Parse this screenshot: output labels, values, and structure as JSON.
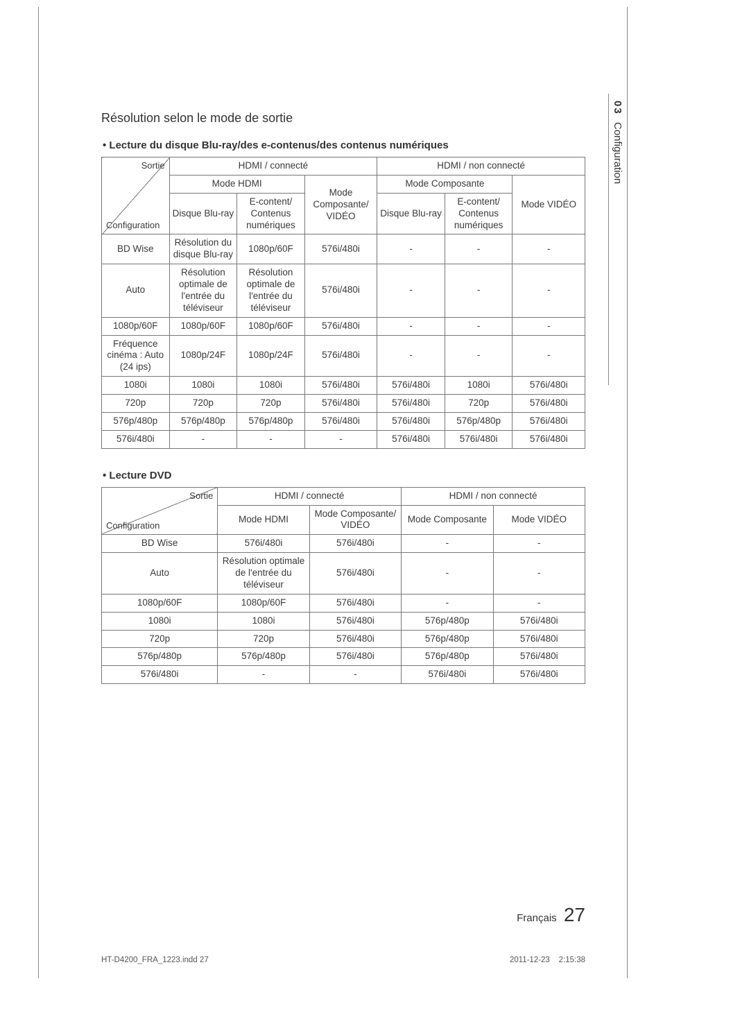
{
  "chapter_number": "03",
  "chapter_title": "Configuration",
  "heading": "Résolution selon le mode de sortie",
  "sub1": "Lecture du disque Blu-ray/des e-contenus/des contenus numériques",
  "sub2": "Lecture DVD",
  "diag_top": "Sortie",
  "diag_bottom": "Configuration",
  "t1": {
    "h_hdmi_c": "HDMI / connecté",
    "h_hdmi_nc": "HDMI / non connecté",
    "h_mode_hdmi": "Mode HDMI",
    "h_mode_comp_video": "Mode Composante/ VIDÉO",
    "h_mode_comp": "Mode Composante",
    "h_mode_video": "Mode VIDÉO",
    "h_br": "Disque Blu-ray",
    "h_ec": "E-content/ Contenus numériques",
    "rows": [
      {
        "c0": "BD Wise",
        "c1": "Résolution du disque Blu-ray",
        "c2": "1080p/60F",
        "c3": "576i/480i",
        "c4": "-",
        "c5": "-",
        "c6": "-"
      },
      {
        "c0": "Auto",
        "c1": "Résolution optimale de l'entrée du téléviseur",
        "c2": "Résolution optimale de l'entrée du téléviseur",
        "c3": "576i/480i",
        "c4": "-",
        "c5": "-",
        "c6": "-"
      },
      {
        "c0": "1080p/60F",
        "c1": "1080p/60F",
        "c2": "1080p/60F",
        "c3": "576i/480i",
        "c4": "-",
        "c5": "-",
        "c6": "-"
      },
      {
        "c0": "Fréquence cinéma : Auto (24 ips)",
        "c1": "1080p/24F",
        "c2": "1080p/24F",
        "c3": "576i/480i",
        "c4": "-",
        "c5": "-",
        "c6": "-"
      },
      {
        "c0": "1080i",
        "c1": "1080i",
        "c2": "1080i",
        "c3": "576i/480i",
        "c4": "576i/480i",
        "c5": "1080i",
        "c6": "576i/480i"
      },
      {
        "c0": "720p",
        "c1": "720p",
        "c2": "720p",
        "c3": "576i/480i",
        "c4": "576i/480i",
        "c5": "720p",
        "c6": "576i/480i"
      },
      {
        "c0": "576p/480p",
        "c1": "576p/480p",
        "c2": "576p/480p",
        "c3": "576i/480i",
        "c4": "576i/480i",
        "c5": "576p/480p",
        "c6": "576i/480i"
      },
      {
        "c0": "576i/480i",
        "c1": "-",
        "c2": "-",
        "c3": "-",
        "c4": "576i/480i",
        "c5": "576i/480i",
        "c6": "576i/480i"
      }
    ]
  },
  "t2": {
    "h_hdmi_c": "HDMI / connecté",
    "h_hdmi_nc": "HDMI / non connecté",
    "h_mode_hdmi": "Mode HDMI",
    "h_mode_comp_video": "Mode Composante/ VIDÉO",
    "h_mode_comp": "Mode Composante",
    "h_mode_video": "Mode VIDÉO",
    "rows": [
      {
        "c0": "BD Wise",
        "c1": "576i/480i",
        "c2": "576i/480i",
        "c3": "-",
        "c4": "-"
      },
      {
        "c0": "Auto",
        "c1": "Résolution optimale de l'entrée du téléviseur",
        "c2": "576i/480i",
        "c3": "-",
        "c4": "-"
      },
      {
        "c0": "1080p/60F",
        "c1": "1080p/60F",
        "c2": "576i/480i",
        "c3": "-",
        "c4": "-"
      },
      {
        "c0": "1080i",
        "c1": "1080i",
        "c2": "576i/480i",
        "c3": "576p/480p",
        "c4": "576i/480i"
      },
      {
        "c0": "720p",
        "c1": "720p",
        "c2": "576i/480i",
        "c3": "576p/480p",
        "c4": "576i/480i"
      },
      {
        "c0": "576p/480p",
        "c1": "576p/480p",
        "c2": "576i/480i",
        "c3": "576p/480p",
        "c4": "576i/480i"
      },
      {
        "c0": "576i/480i",
        "c1": "-",
        "c2": "-",
        "c3": "576i/480i",
        "c4": "576i/480i"
      }
    ]
  },
  "footer_lang": "Français",
  "footer_page": "27",
  "footer_file": "HT-D4200_FRA_1223.indd   27",
  "footer_date": "2011-12-23",
  "footer_time": "2:15:38"
}
